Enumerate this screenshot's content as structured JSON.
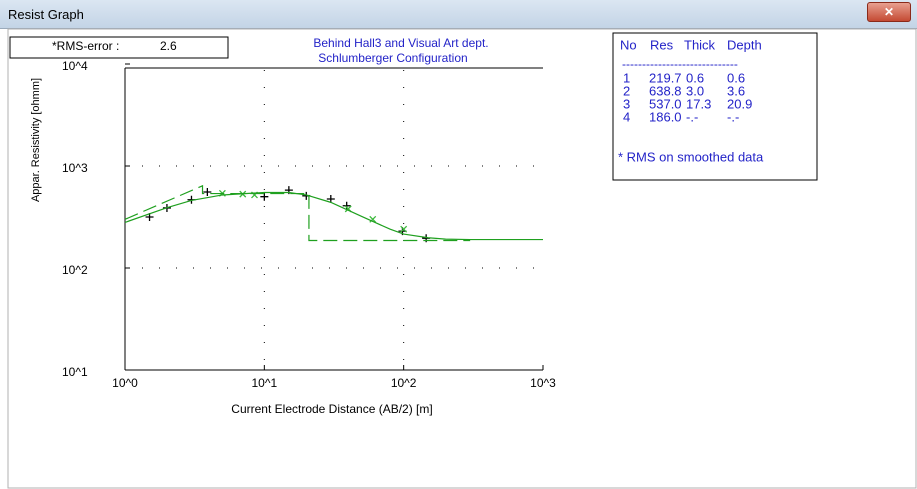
{
  "window": {
    "title": "Resist Graph"
  },
  "rms": {
    "label": "*RMS-error :",
    "value": 2.6
  },
  "chart_data": {
    "type": "line",
    "title": "Behind Hall3 and Visual Art dept.",
    "subtitle": "Schlumberger Configuration",
    "x_label": "Current Electrode Distance (AB/2) [m]",
    "y_label": "Appar. Resistivity [ohmm]",
    "log_x": true,
    "log_y": true,
    "grid": true,
    "xlim": [
      1,
      1000
    ],
    "ylim": [
      10,
      10000
    ],
    "xticks": [
      {
        "value": 1,
        "label": "10^0"
      },
      {
        "value": 10,
        "label": "10^1"
      },
      {
        "value": 100,
        "label": "10^2"
      },
      {
        "value": 1000,
        "label": "10^3"
      }
    ],
    "yticks": [
      {
        "value": 10,
        "label": "10^1"
      },
      {
        "value": 100,
        "label": "10^2"
      },
      {
        "value": 1000,
        "label": "10^3"
      },
      {
        "value": 10000,
        "label": "10^4"
      }
    ],
    "series": [
      {
        "color": "#000000",
        "marker": "+",
        "x": [
          1.5,
          2,
          3,
          3.9,
          10,
          15,
          20,
          30,
          39,
          98,
          145
        ],
        "values": [
          316,
          388,
          467,
          556,
          500,
          580,
          510,
          475,
          408,
          230,
          196
        ]
      },
      {
        "color": "#3cb83c",
        "marker": "x",
        "x": [
          5,
          7,
          8.5,
          40,
          60,
          100
        ],
        "values": [
          540,
          530,
          520,
          380,
          300,
          240
        ]
      },
      {
        "color": "#1fa01f",
        "line": "solid",
        "x": [
          1,
          2,
          3,
          5,
          10,
          15,
          20,
          30,
          50,
          80,
          100,
          150,
          200,
          300,
          500,
          1000
        ],
        "values": [
          280,
          390,
          460,
          520,
          550,
          550,
          520,
          440,
          320,
          240,
          215,
          198,
          192,
          190,
          190,
          190
        ]
      },
      {
        "color": "#1fa01f",
        "line": "dashed",
        "x": [
          1,
          3.6,
          3.6,
          20.9,
          20.9,
          300
        ],
        "values": [
          300,
          640,
          537,
          537,
          186,
          186
        ]
      }
    ]
  },
  "table": {
    "columns": [
      "No",
      "Res",
      "Thick",
      "Depth"
    ],
    "rows": [
      [
        "1",
        "219.7",
        "0.6",
        "0.6"
      ],
      [
        "2",
        "638.8",
        "3.0",
        "3.6"
      ],
      [
        "3",
        "537.0",
        "17.3",
        "20.9"
      ],
      [
        "4",
        "186.0",
        "-.-",
        "-.-"
      ]
    ],
    "note": "* RMS on smoothed data"
  }
}
